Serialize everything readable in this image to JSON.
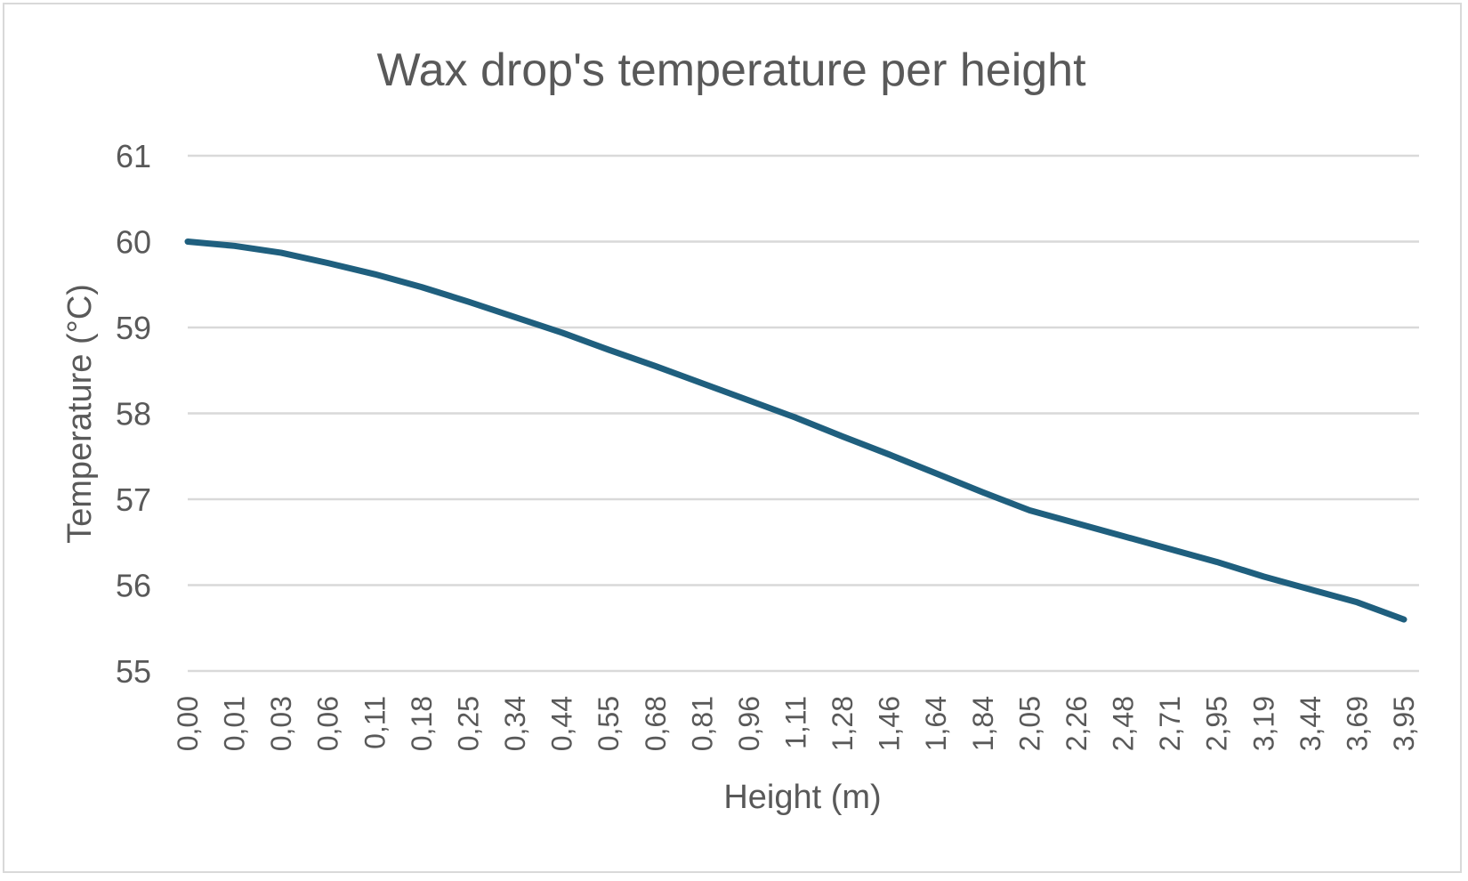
{
  "chart_data": {
    "type": "line",
    "title": "Wax drop's temperature per height",
    "xlabel": "Height (m)",
    "ylabel": "Temperature (°C)",
    "ylim": [
      55,
      61
    ],
    "yticks": [
      "55",
      "56",
      "57",
      "58",
      "59",
      "60",
      "61"
    ],
    "grid": true,
    "legend": "none",
    "categories": [
      "0,00",
      "0,01",
      "0,03",
      "0,06",
      "0,11",
      "0,18",
      "0,25",
      "0,34",
      "0,44",
      "0,55",
      "0,68",
      "0,81",
      "0,96",
      "1,11",
      "1,28",
      "1,46",
      "1,64",
      "1,84",
      "2,05",
      "2,26",
      "2,48",
      "2,71",
      "2,95",
      "3,19",
      "3,44",
      "3,69",
      "3,95"
    ],
    "series": [
      {
        "values": [
          60.0,
          59.95,
          59.87,
          59.75,
          59.62,
          59.47,
          59.3,
          59.12,
          58.94,
          58.74,
          58.55,
          58.35,
          58.15,
          57.95,
          57.73,
          57.52,
          57.3,
          57.08,
          56.87,
          56.72,
          56.57,
          56.42,
          56.27,
          56.1,
          55.95,
          55.8,
          55.6
        ],
        "color": "#1f5f7e"
      }
    ],
    "colors": {
      "grid": "#d9d9d9",
      "text": "#595959"
    }
  }
}
